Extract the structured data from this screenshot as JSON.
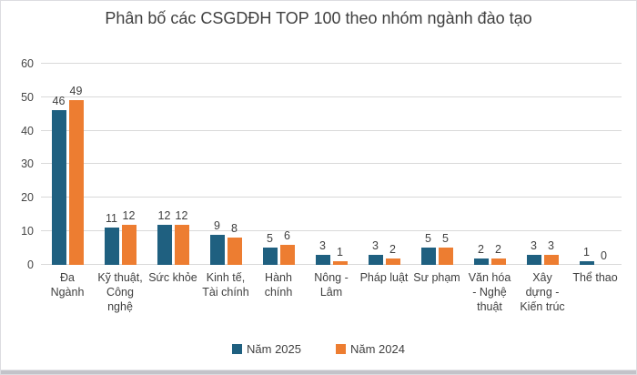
{
  "title": "Phân bố các CSGDĐH TOP 100 theo nhóm ngành đào tạo",
  "colors": {
    "series_2025": "#1F6080",
    "series_2024": "#ED7D31",
    "grid": "#D9D9D9",
    "text": "#3F3F3F"
  },
  "chart_data": {
    "type": "bar",
    "title": "Phân bố các CSGDĐH TOP 100 theo nhóm ngành đào tạo",
    "categories": [
      "Đa Ngành",
      "Kỹ thuật, Công nghệ",
      "Sức khỏe",
      "Kinh tế, Tài chính",
      "Hành chính",
      "Nông - Lâm",
      "Pháp luật",
      "Sư phạm",
      "Văn hóa - Nghệ thuật",
      "Xây dựng - Kiến trúc",
      "Thể thao"
    ],
    "category_lines": [
      [
        "Đa",
        "Ngành"
      ],
      [
        "Kỹ thuật,",
        "Công",
        "nghệ"
      ],
      [
        "Sức khỏe"
      ],
      [
        "Kinh tế,",
        "Tài chính"
      ],
      [
        "Hành",
        "chính"
      ],
      [
        "Nông -",
        "Lâm"
      ],
      [
        "Pháp luật"
      ],
      [
        "Sư phạm"
      ],
      [
        "Văn hóa",
        "- Nghệ",
        "thuật"
      ],
      [
        "Xây",
        "dựng -",
        "Kiến trúc"
      ],
      [
        "Thể thao"
      ]
    ],
    "series": [
      {
        "name": "Năm 2025",
        "color": "#1F6080",
        "values": [
          46,
          11,
          12,
          9,
          5,
          3,
          3,
          5,
          2,
          3,
          1
        ]
      },
      {
        "name": "Năm 2024",
        "color": "#ED7D31",
        "values": [
          49,
          12,
          12,
          8,
          6,
          1,
          2,
          5,
          2,
          3,
          0
        ]
      }
    ],
    "xlabel": "",
    "ylabel": "",
    "ylim": [
      0,
      60
    ],
    "yticks": [
      0,
      10,
      20,
      30,
      40,
      50,
      60
    ],
    "grid": true,
    "legend_position": "bottom"
  }
}
